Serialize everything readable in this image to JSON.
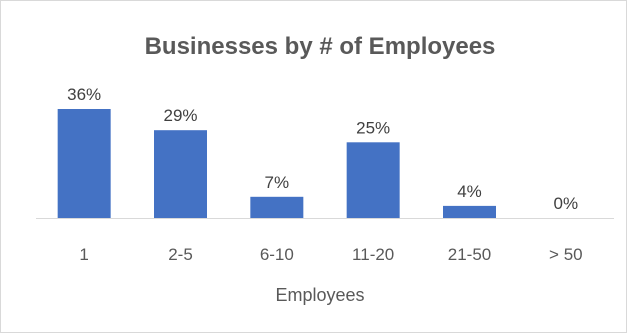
{
  "chart_data": {
    "type": "bar",
    "title": "Businesses by # of Employees",
    "xlabel": "Employees",
    "ylabel": "",
    "categories": [
      "1",
      "2-5",
      "6-10",
      "11-20",
      "21-50",
      "> 50"
    ],
    "values": [
      36,
      29,
      7,
      25,
      4,
      0
    ],
    "data_labels": [
      "36%",
      "29%",
      "7%",
      "25%",
      "4%",
      "0%"
    ],
    "value_unit": "%",
    "ylim": [
      0,
      36
    ],
    "grid": false,
    "legend": "none",
    "colors": {
      "bar": "#4472C4",
      "axis": "#d9d9d9",
      "text": "#595959"
    }
  }
}
